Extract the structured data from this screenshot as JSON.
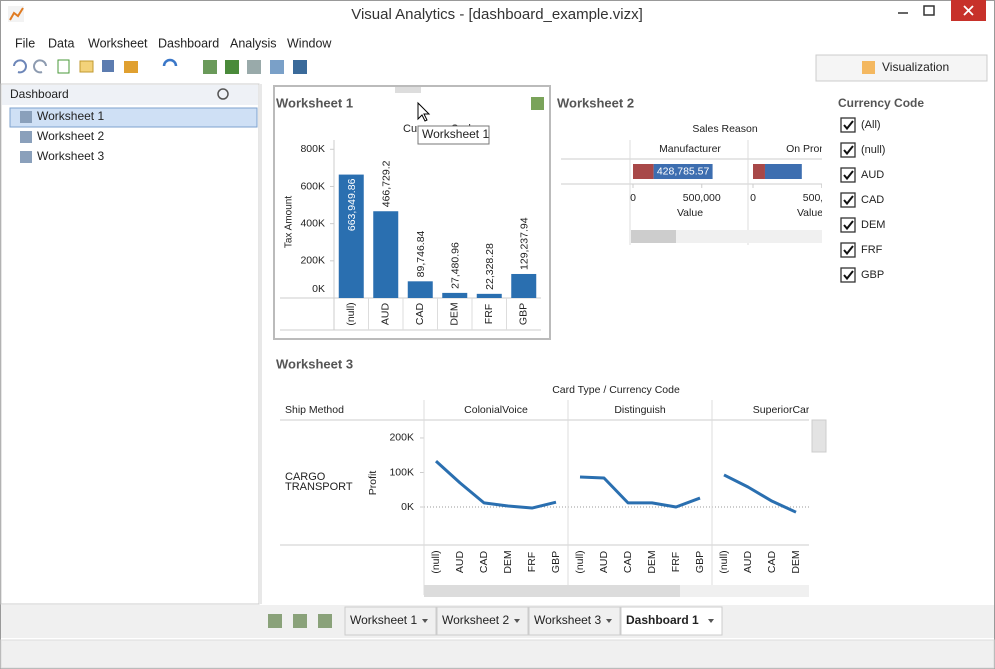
{
  "window": {
    "title": "Visual Analytics - [dashboard_example.vizx]"
  },
  "menu": [
    "File",
    "Data",
    "Worksheet",
    "Dashboard",
    "Analysis",
    "Window"
  ],
  "ribbon_tab": "Visualization",
  "sidebar": {
    "title": "Dashboard",
    "items": [
      "Worksheet 1",
      "Worksheet 2",
      "Worksheet 3"
    ],
    "selected": 0
  },
  "tooltip": "Worksheet 1",
  "filter": {
    "title": "Currency Code",
    "items": [
      "(All)",
      "(null)",
      "AUD",
      "CAD",
      "DEM",
      "FRF",
      "GBP"
    ]
  },
  "tabs": {
    "items": [
      "Worksheet 1",
      "Worksheet 2",
      "Worksheet 3",
      "Dashboard 1"
    ],
    "active": 3
  },
  "chart_data": [
    {
      "type": "bar",
      "title": "Worksheet 1",
      "header": "Currency Code",
      "y_label": "Tax Amount",
      "categories": [
        "(null)",
        "AUD",
        "CAD",
        "DEM",
        "FRF",
        "GBP"
      ],
      "values": [
        663949.86,
        466729.2,
        89746.84,
        27480.96,
        22328.28,
        129237.94
      ],
      "value_labels": [
        "663,949.86",
        "466,729.2",
        "89,746.84",
        "27,480.96",
        "22,328.28",
        "129,237.94"
      ],
      "color": "#2a6fb0",
      "ylim": [
        0,
        850000
      ],
      "yticks": [
        {
          "value": 0,
          "label": "0K"
        },
        {
          "value": 200000,
          "label": "200K"
        },
        {
          "value": 400000,
          "label": "400K"
        },
        {
          "value": 600000,
          "label": "600K"
        },
        {
          "value": 800000,
          "label": "800K"
        }
      ]
    },
    {
      "type": "hbar",
      "title": "Worksheet 2",
      "header": "Sales Reason",
      "x_label": "Value",
      "categories": [
        "Manufacturer",
        "On Promo"
      ],
      "series": [
        {
          "color": "#a84848",
          "values": [
            150000,
            87000
          ]
        },
        {
          "color": "#3d6eb0",
          "values": [
            428785.57,
            268000
          ],
          "value_labels": [
            "428,785.57",
            null
          ]
        }
      ],
      "xlim": [
        0,
        800000
      ],
      "xticks": [
        0,
        {
          "value": 500000,
          "label": "500,000"
        }
      ]
    },
    {
      "type": "line",
      "title": "Worksheet 3",
      "header": "Card Type / Currency Code",
      "row_header": "Ship Method",
      "row": "CARGO TRANSPORT",
      "y_label": "Profit",
      "categories": [
        "(null)",
        "AUD",
        "CAD",
        "DEM",
        "FRF",
        "GBP"
      ],
      "series": [
        {
          "name": "ColonialVoice",
          "color": "#2a6fb0",
          "values": [
            133000,
            70000,
            12000,
            3000,
            -3000,
            14000
          ]
        },
        {
          "name": "Distinguish",
          "color": "#2a6fb0",
          "values": [
            87000,
            84000,
            12000,
            12000,
            0,
            26000
          ]
        },
        {
          "name": "SuperiorCard",
          "color": "#2a6fb0",
          "values": [
            93000,
            58000,
            17000,
            -15000,
            null,
            null
          ]
        }
      ],
      "ylim": [
        -110000,
        252000
      ],
      "yticks": [
        {
          "value": 0,
          "label": "0K"
        },
        {
          "value": 100000,
          "label": "100K"
        },
        {
          "value": 200000,
          "label": "200K"
        }
      ]
    }
  ]
}
